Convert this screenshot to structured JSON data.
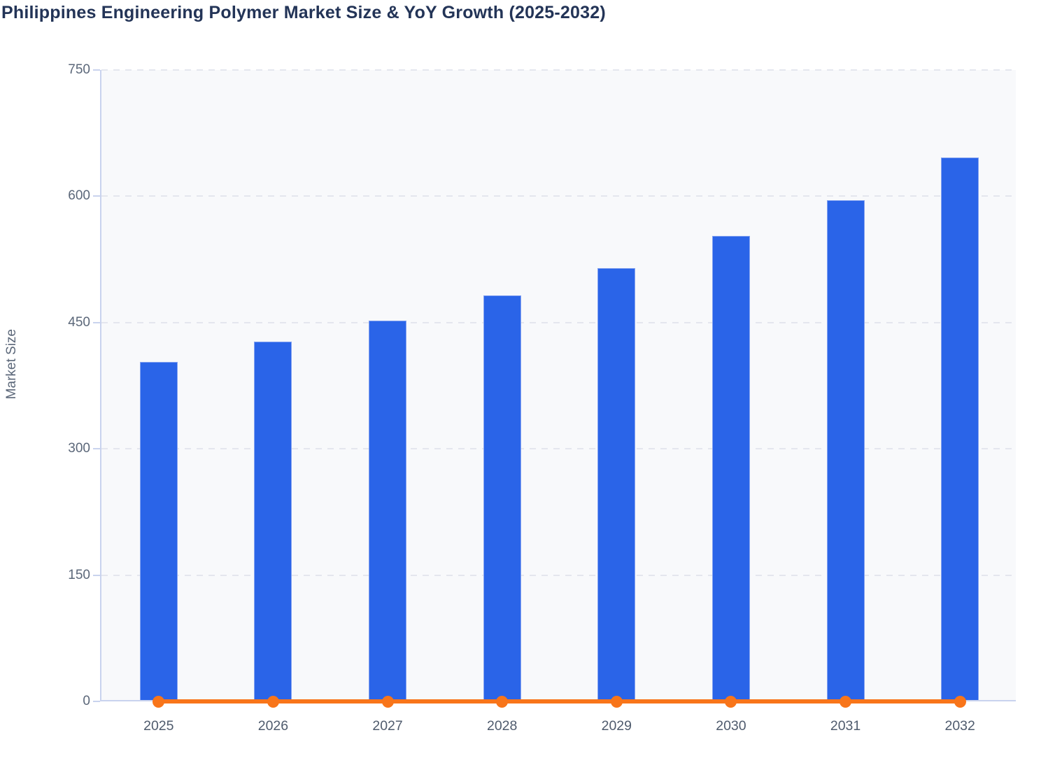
{
  "title": "Philippines Engineering Polymer Market Size & YoY Growth (2025-2032)",
  "colors": {
    "title_text": "#233457",
    "bar_fill": "#2a64e8",
    "bar_stroke": "#86a4f1",
    "line_orange": "#f8751a",
    "plot_background": "#f8f9fb",
    "axis_line": "#c9d3ee",
    "gridline": "#e4e6ee",
    "tick_label": "#5b6779"
  },
  "chart_data": {
    "type": "bar",
    "title": "Philippines Engineering Polymer Market Size & YoY Growth (2025-2032)",
    "categories": [
      "2025",
      "2026",
      "2027",
      "2028",
      "2029",
      "2030",
      "2031",
      "2032"
    ],
    "series": [
      {
        "name": "Market Size",
        "type": "bar",
        "color": "#2a64e8",
        "values": [
          402,
          426,
          451,
          481,
          513,
          551,
          594,
          644
        ]
      },
      {
        "name": "YoY Growth",
        "type": "line",
        "color": "#f8751a",
        "values": [
          0,
          0,
          0,
          0,
          0,
          0,
          0,
          0
        ],
        "note": "line with round markers drawn flat on the zero baseline"
      }
    ],
    "xlabel": "",
    "ylabel": "Market Size",
    "ylim": [
      0,
      750
    ],
    "yticks": [
      0,
      150,
      300,
      450,
      600,
      750
    ],
    "grid": "horizontal dashed",
    "legend": "none"
  }
}
